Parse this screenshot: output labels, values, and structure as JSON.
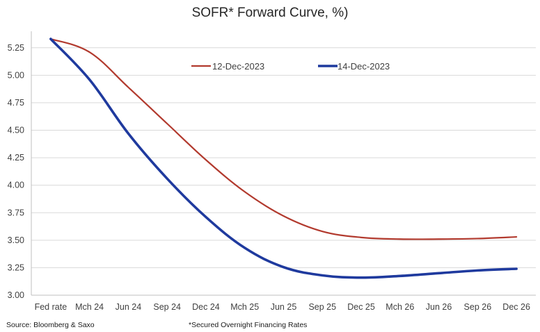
{
  "title": "SOFR* Forward Curve, %)",
  "source": "Source: Bloomberg & Saxo",
  "footnote": "*Secured Overnight Financing Rates",
  "colors": {
    "series1": "#b23a2e",
    "series2": "#1f3a9e",
    "grid": "#d9d9d9",
    "axis": "#bfbfbf"
  },
  "chart_data": {
    "type": "line",
    "title": "SOFR* Forward Curve, %)",
    "xlabel": "",
    "ylabel": "",
    "ylim": [
      3.0,
      5.4
    ],
    "yticks": [
      "3.00",
      "3.25",
      "3.50",
      "3.75",
      "4.00",
      "4.25",
      "4.50",
      "4.75",
      "5.00",
      "5.25"
    ],
    "ytick_values": [
      3.0,
      3.25,
      3.5,
      3.75,
      4.0,
      4.25,
      4.5,
      4.75,
      5.0,
      5.25
    ],
    "categories": [
      "Fed rate",
      "Mch 24",
      "Jun 24",
      "Sep 24",
      "Dec 24",
      "Mch 25",
      "Jun 25",
      "Sep 25",
      "Dec 25",
      "Mch 26",
      "Jun 26",
      "Sep 26",
      "Dec 26"
    ],
    "grid": "horizontal",
    "legend": "top-center",
    "series": [
      {
        "name": "12-Dec-2023",
        "values": [
          5.33,
          5.21,
          4.89,
          4.56,
          4.23,
          3.94,
          3.72,
          3.58,
          3.525,
          3.51,
          3.51,
          3.515,
          3.53
        ]
      },
      {
        "name": "14-Dec-2023",
        "values": [
          5.33,
          4.96,
          4.47,
          4.06,
          3.71,
          3.43,
          3.255,
          3.18,
          3.16,
          3.175,
          3.2,
          3.225,
          3.24
        ]
      }
    ]
  }
}
